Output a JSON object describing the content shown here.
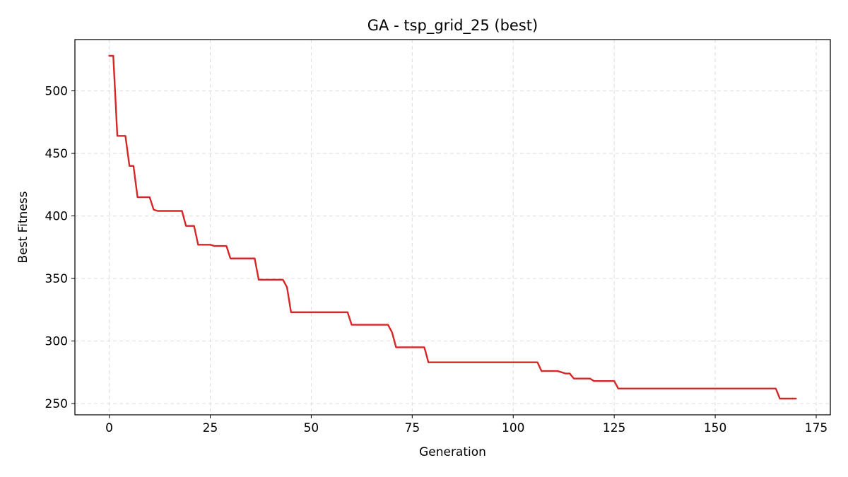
{
  "chart_data": {
    "type": "line",
    "title": "GA - tsp_grid_25 (best)",
    "xlabel": "Generation",
    "ylabel": "Best Fitness",
    "xlim": [
      -8.5,
      178.5
    ],
    "ylim": [
      241,
      541
    ],
    "xticks": [
      0,
      25,
      50,
      75,
      100,
      125,
      150,
      175
    ],
    "yticks": [
      250,
      300,
      350,
      400,
      450,
      500
    ],
    "grid": true,
    "line_color": "#d62728",
    "series": [
      {
        "x": [
          0,
          1,
          2,
          3,
          4,
          5,
          6,
          7,
          8,
          9,
          10,
          11,
          12,
          13,
          14,
          15,
          16,
          17,
          18,
          19,
          20,
          21,
          22,
          23,
          24,
          25,
          26,
          27,
          28,
          29,
          30,
          31,
          32,
          33,
          34,
          35,
          36,
          37,
          38,
          39,
          40,
          41,
          42,
          43,
          44,
          45,
          46,
          47,
          48,
          49,
          50,
          51,
          52,
          53,
          54,
          55,
          56,
          57,
          58,
          59,
          60,
          61,
          62,
          63,
          64,
          65,
          66,
          67,
          68,
          69,
          70,
          71,
          72,
          73,
          74,
          75,
          76,
          77,
          78,
          79,
          80,
          81,
          82,
          83,
          84,
          85,
          86,
          87,
          88,
          89,
          90,
          91,
          92,
          93,
          94,
          95,
          96,
          97,
          98,
          99,
          100,
          101,
          102,
          103,
          104,
          105,
          106,
          107,
          108,
          109,
          110,
          111,
          112,
          113,
          114,
          115,
          116,
          117,
          118,
          119,
          120,
          121,
          122,
          123,
          124,
          125,
          126,
          127,
          128,
          129,
          130,
          131,
          132,
          133,
          134,
          135,
          136,
          137,
          138,
          139,
          140,
          141,
          142,
          143,
          144,
          145,
          146,
          147,
          148,
          149,
          150,
          151,
          152,
          153,
          154,
          155,
          156,
          157,
          158,
          159,
          160,
          161,
          162,
          163,
          164,
          165,
          166,
          167,
          168,
          169,
          170
        ],
        "y": [
          528,
          528,
          464,
          464,
          464,
          440,
          440,
          415,
          415,
          415,
          415,
          405,
          404,
          404,
          404,
          404,
          404,
          404,
          404,
          392,
          392,
          392,
          377,
          377,
          377,
          377,
          376,
          376,
          376,
          376,
          366,
          366,
          366,
          366,
          366,
          366,
          366,
          349,
          349,
          349,
          349,
          349,
          349,
          349,
          343,
          323,
          323,
          323,
          323,
          323,
          323,
          323,
          323,
          323,
          323,
          323,
          323,
          323,
          323,
          323,
          313,
          313,
          313,
          313,
          313,
          313,
          313,
          313,
          313,
          313,
          307,
          295,
          295,
          295,
          295,
          295,
          295,
          295,
          295,
          283,
          283,
          283,
          283,
          283,
          283,
          283,
          283,
          283,
          283,
          283,
          283,
          283,
          283,
          283,
          283,
          283,
          283,
          283,
          283,
          283,
          283,
          283,
          283,
          283,
          283,
          283,
          283,
          276,
          276,
          276,
          276,
          276,
          275,
          274,
          274,
          270,
          270,
          270,
          270,
          270,
          268,
          268,
          268,
          268,
          268,
          268,
          262,
          262,
          262,
          262,
          262,
          262,
          262,
          262,
          262,
          262,
          262,
          262,
          262,
          262,
          262,
          262,
          262,
          262,
          262,
          262,
          262,
          262,
          262,
          262,
          262,
          262,
          262,
          262,
          262,
          262,
          262,
          262,
          262,
          262,
          262,
          262,
          262,
          262,
          262,
          262,
          254,
          254,
          254,
          254,
          254
        ]
      }
    ]
  }
}
